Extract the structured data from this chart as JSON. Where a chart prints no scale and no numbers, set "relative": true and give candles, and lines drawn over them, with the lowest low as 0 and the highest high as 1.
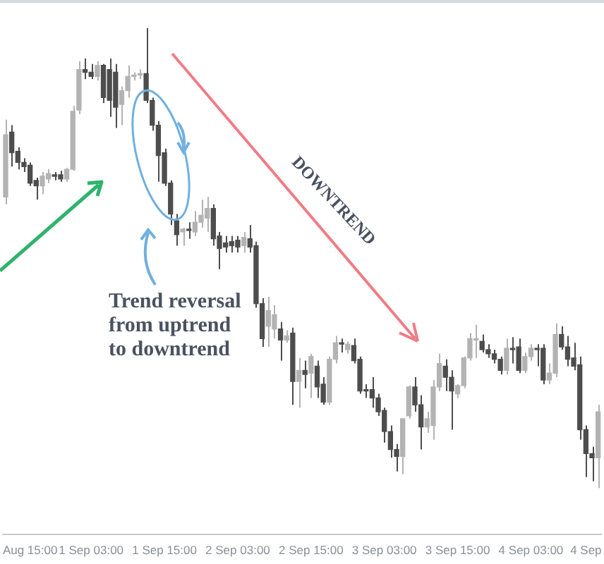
{
  "chart_data": {
    "type": "candlestick",
    "relative": true,
    "tick_labels": "x",
    "grid": false,
    "legend": false,
    "categories": [
      null,
      null,
      null,
      null,
      "Aug 15:00",
      null,
      null,
      null,
      null,
      null,
      null,
      null,
      null,
      null,
      "1 Sep 03:00",
      null,
      null,
      null,
      null,
      null,
      null,
      null,
      null,
      null,
      null,
      null,
      "1 Sep 15:00",
      null,
      null,
      null,
      null,
      null,
      null,
      null,
      null,
      null,
      null,
      null,
      "2 Sep 03:00",
      null,
      null,
      null,
      null,
      null,
      null,
      null,
      null,
      null,
      null,
      null,
      "2 Sep 15:00",
      null,
      null,
      null,
      null,
      null,
      null,
      null,
      null,
      null,
      null,
      null,
      "3 Sep 03:00",
      null,
      null,
      null,
      null,
      null,
      null,
      null,
      null,
      null,
      null,
      null,
      "3 Sep 15:00",
      null,
      null,
      null,
      null,
      null,
      null,
      null,
      null,
      null,
      null,
      null,
      "4 Sep 03:00",
      null,
      null,
      null,
      null,
      null,
      null,
      null,
      null,
      "4 Sep",
      null,
      null
    ],
    "ohlc": [
      [
        0.633,
        0.801,
        0.617,
        0.768
      ],
      [
        0.774,
        0.789,
        0.699,
        0.729
      ],
      [
        0.732,
        0.741,
        0.693,
        0.708
      ],
      [
        0.708,
        0.717,
        0.687,
        0.699
      ],
      [
        0.702,
        0.708,
        0.657,
        0.663
      ],
      [
        0.669,
        0.675,
        0.627,
        0.657
      ],
      [
        0.657,
        0.687,
        0.639,
        0.678
      ],
      [
        0.672,
        0.693,
        0.663,
        0.684
      ],
      [
        0.678,
        0.687,
        0.669,
        0.681
      ],
      [
        0.681,
        0.69,
        0.666,
        0.672
      ],
      [
        0.672,
        0.696,
        0.666,
        0.693
      ],
      [
        0.693,
        0.831,
        0.69,
        0.819
      ],
      [
        0.822,
        0.928,
        0.813,
        0.91
      ],
      [
        0.91,
        0.934,
        0.889,
        0.904
      ],
      [
        0.904,
        0.922,
        0.889,
        0.895
      ],
      [
        0.895,
        0.928,
        0.886,
        0.919
      ],
      [
        0.919,
        0.922,
        0.837,
        0.849
      ],
      [
        0.91,
        0.934,
        0.807,
        0.843
      ],
      [
        0.904,
        0.922,
        0.783,
        0.828
      ],
      [
        0.834,
        0.873,
        0.789,
        0.864
      ],
      [
        0.864,
        0.919,
        0.849,
        0.895
      ],
      [
        0.895,
        0.904,
        0.886,
        0.898
      ],
      [
        0.898,
        0.91,
        0.889,
        0.901
      ],
      [
        0.901,
        1,
        0.837,
        0.843
      ],
      [
        0.843,
        0.849,
        0.777,
        0.789
      ],
      [
        0.789,
        0.798,
        0.666,
        0.723
      ],
      [
        0.729,
        0.738,
        0.657,
        0.663
      ],
      [
        0.663,
        0.669,
        0.572,
        0.596
      ],
      [
        0.581,
        0.596,
        0.527,
        0.551
      ],
      [
        0.557,
        0.566,
        0.527,
        0.563
      ],
      [
        0.563,
        0.578,
        0.542,
        0.56
      ],
      [
        0.557,
        0.602,
        0.548,
        0.578
      ],
      [
        0.578,
        0.627,
        0.566,
        0.593
      ],
      [
        0.587,
        0.633,
        0.557,
        0.608
      ],
      [
        0.608,
        0.617,
        0.527,
        0.542
      ],
      [
        0.548,
        0.557,
        0.476,
        0.521
      ],
      [
        0.533,
        0.548,
        0.512,
        0.524
      ],
      [
        0.536,
        0.548,
        0.512,
        0.527
      ],
      [
        0.539,
        0.548,
        0.512,
        0.524
      ],
      [
        0.527,
        0.557,
        0.512,
        0.545
      ],
      [
        0.542,
        0.572,
        0.512,
        0.524
      ],
      [
        0.527,
        0.536,
        0.392,
        0.401
      ],
      [
        0.401,
        0.413,
        0.307,
        0.325
      ],
      [
        0.352,
        0.416,
        0.307,
        0.386
      ],
      [
        0.346,
        0.398,
        0.325,
        0.377
      ],
      [
        0.346,
        0.361,
        0.277,
        0.322
      ],
      [
        0.322,
        0.343,
        0.316,
        0.331
      ],
      [
        0.337,
        0.349,
        0.181,
        0.232
      ],
      [
        0.232,
        0.283,
        0.175,
        0.256
      ],
      [
        0.256,
        0.277,
        0.217,
        0.247
      ],
      [
        0.25,
        0.292,
        0.196,
        0.286
      ],
      [
        0.265,
        0.277,
        0.196,
        0.22
      ],
      [
        0.226,
        0.241,
        0.181,
        0.187
      ],
      [
        0.187,
        0.286,
        0.181,
        0.28
      ],
      [
        0.28,
        0.331,
        0.271,
        0.316
      ],
      [
        0.316,
        0.325,
        0.295,
        0.313
      ],
      [
        0.301,
        0.319,
        0.292,
        0.313
      ],
      [
        0.31,
        0.325,
        0.271,
        0.277
      ],
      [
        0.28,
        0.286,
        0.205,
        0.211
      ],
      [
        0.214,
        0.226,
        0.196,
        0.211
      ],
      [
        0.214,
        0.241,
        0.175,
        0.196
      ],
      [
        0.196,
        0.205,
        0.157,
        0.166
      ],
      [
        0.169,
        0.175,
        0.099,
        0.123
      ],
      [
        0.123,
        0.136,
        0.066,
        0.084
      ],
      [
        0.084,
        0.096,
        0.036,
        0.069
      ],
      [
        0.069,
        0.151,
        0.03,
        0.151
      ],
      [
        0.157,
        0.223,
        0.151,
        0.22
      ],
      [
        0.22,
        0.241,
        0.166,
        0.181
      ],
      [
        0.181,
        0.202,
        0.084,
        0.133
      ],
      [
        0.133,
        0.166,
        0.12,
        0.151
      ],
      [
        0.136,
        0.235,
        0.105,
        0.22
      ],
      [
        0.22,
        0.292,
        0.211,
        0.271
      ],
      [
        0.265,
        0.28,
        0.211,
        0.241
      ],
      [
        0.241,
        0.256,
        0.127,
        0.211
      ],
      [
        0.205,
        0.226,
        0.196,
        0.223
      ],
      [
        0.223,
        0.286,
        0.217,
        0.283
      ],
      [
        0.283,
        0.337,
        0.277,
        0.325
      ],
      [
        0.322,
        0.355,
        0.283,
        0.325
      ],
      [
        0.319,
        0.334,
        0.295,
        0.301
      ],
      [
        0.301,
        0.313,
        0.283,
        0.292
      ],
      [
        0.292,
        0.301,
        0.271,
        0.28
      ],
      [
        0.28,
        0.286,
        0.247,
        0.256
      ],
      [
        0.256,
        0.325,
        0.247,
        0.304
      ],
      [
        0.304,
        0.328,
        0.271,
        0.301
      ],
      [
        0.307,
        0.325,
        0.25,
        0.256
      ],
      [
        0.256,
        0.295,
        0.25,
        0.286
      ],
      [
        0.286,
        0.313,
        0.277,
        0.304
      ],
      [
        0.304,
        0.313,
        0.265,
        0.301
      ],
      [
        0.304,
        0.313,
        0.226,
        0.235
      ],
      [
        0.235,
        0.271,
        0.226,
        0.25
      ],
      [
        0.25,
        0.358,
        0.241,
        0.334
      ],
      [
        0.334,
        0.352,
        0.301,
        0.307
      ],
      [
        0.307,
        0.331,
        0.265,
        0.28
      ],
      [
        0.283,
        0.316,
        0.256,
        0.265
      ],
      [
        0.268,
        0.286,
        0.105,
        0.127
      ],
      [
        0.127,
        0.136,
        0.024,
        0.075
      ],
      [
        0.075,
        0.09,
        0.015,
        0.066
      ],
      [
        0.066,
        0.181,
        0,
        0.166
      ]
    ],
    "colors": [
      "#b3b3b3",
      "#4d4d4d",
      "#4d4d4d",
      "#4d4d4d",
      "#4d4d4d",
      "#4d4d4d",
      "#b3b3b3",
      "#b3b3b3",
      "#4d4d4d",
      "#4d4d4d",
      "#b3b3b3",
      "#b3b3b3",
      "#b3b3b3",
      "#4d4d4d",
      "#4d4d4d",
      "#b3b3b3",
      "#4d4d4d",
      "#4d4d4d",
      "#4d4d4d",
      "#b3b3b3",
      "#b3b3b3",
      "#b3b3b3",
      "#b3b3b3",
      "#4d4d4d",
      "#4d4d4d",
      "#4d4d4d",
      "#4d4d4d",
      "#4d4d4d",
      "#4d4d4d",
      "#b3b3b3",
      "#4d4d4d",
      "#b3b3b3",
      "#b3b3b3",
      "#b3b3b3",
      "#4d4d4d",
      "#4d4d4d",
      "#4d4d4d",
      "#4d4d4d",
      "#4d4d4d",
      "#b3b3b3",
      "#4d4d4d",
      "#4d4d4d",
      "#4d4d4d",
      "#b3b3b3",
      "#b3b3b3",
      "#4d4d4d",
      "#b3b3b3",
      "#4d4d4d",
      "#b3b3b3",
      "#4d4d4d",
      "#b3b3b3",
      "#4d4d4d",
      "#4d4d4d",
      "#b3b3b3",
      "#b3b3b3",
      "#4d4d4d",
      "#b3b3b3",
      "#4d4d4d",
      "#4d4d4d",
      "#4d4d4d",
      "#4d4d4d",
      "#4d4d4d",
      "#4d4d4d",
      "#4d4d4d",
      "#4d4d4d",
      "#b3b3b3",
      "#b3b3b3",
      "#4d4d4d",
      "#4d4d4d",
      "#b3b3b3",
      "#b3b3b3",
      "#b3b3b3",
      "#4d4d4d",
      "#4d4d4d",
      "#b3b3b3",
      "#b3b3b3",
      "#b3b3b3",
      "#b3b3b3",
      "#4d4d4d",
      "#4d4d4d",
      "#4d4d4d",
      "#4d4d4d",
      "#b3b3b3",
      "#4d4d4d",
      "#4d4d4d",
      "#b3b3b3",
      "#b3b3b3",
      "#4d4d4d",
      "#4d4d4d",
      "#b3b3b3",
      "#b3b3b3",
      "#4d4d4d",
      "#4d4d4d",
      "#4d4d4d",
      "#4d4d4d",
      "#4d4d4d",
      "#4d4d4d",
      "#b3b3b3"
    ],
    "annotations": [
      "Trend reversal\nfrom uptrend\nto downtrend",
      "DOWNTREND"
    ]
  }
}
